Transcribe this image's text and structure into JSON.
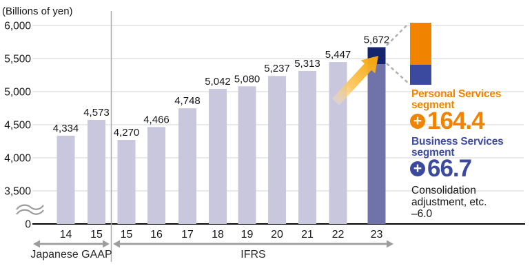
{
  "colors": {
    "bar": "#c9c7de",
    "highlight_top": "#14256d",
    "highlight_bottom": "#7073aa",
    "orange": "#f08300",
    "blue": "#3b4a9f",
    "gridline": "#dcdcdc",
    "axis": "#000000",
    "text": "#161616",
    "range_arrow": "#9d9d9d",
    "dash": "#b3b3b3",
    "arrow_head": "#f6a300",
    "arrow_tail": "#fbe3b4"
  },
  "chart_data": {
    "type": "bar",
    "unit_label": "(Billions of yen)",
    "categories": [
      "14",
      "15",
      "15",
      "16",
      "17",
      "18",
      "19",
      "20",
      "21",
      "22",
      "23"
    ],
    "values": [
      4334,
      4573,
      4270,
      4466,
      4748,
      5042,
      5080,
      5237,
      5313,
      5447,
      5672
    ],
    "value_labels": [
      "4,334",
      "4,573",
      "4,270",
      "4,466",
      "4,748",
      "5,042",
      "5,080",
      "5,237",
      "5,313",
      "5,447",
      "5,672"
    ],
    "y_ticks": [
      0,
      3500,
      4000,
      4500,
      5000,
      5500,
      6000
    ],
    "y_tick_labels": [
      "0",
      "3,500",
      "4,000",
      "4,500",
      "5,000",
      "5,500",
      "6,000"
    ],
    "axis_break": true,
    "groups": [
      {
        "label": "Japanese GAAP",
        "first_bar": 0,
        "last_bar": 1
      },
      {
        "label": "IFRS",
        "first_bar": 2,
        "last_bar": 10
      }
    ],
    "highlight_index": 10,
    "highlight_breakout": {
      "segments": [
        {
          "label": "Personal Services segment",
          "change": "+164.4",
          "color": "#f08300"
        },
        {
          "label": "Business Services segment",
          "change": "+66.7",
          "color": "#3b4a9f"
        }
      ],
      "adjustment": {
        "label": "Consolidation adjustment, etc.",
        "change": "-6.0"
      }
    }
  },
  "legend": {
    "plus_symbol": "+",
    "personal": {
      "line1": "Personal Services",
      "line2": "segment",
      "value": "164.4"
    },
    "business": {
      "line1": "Business Services",
      "line2": "segment",
      "value": "66.7"
    },
    "adjustment": {
      "line1": "Consolidation",
      "line2": "adjustment, etc.",
      "line3": "–6.0"
    }
  }
}
